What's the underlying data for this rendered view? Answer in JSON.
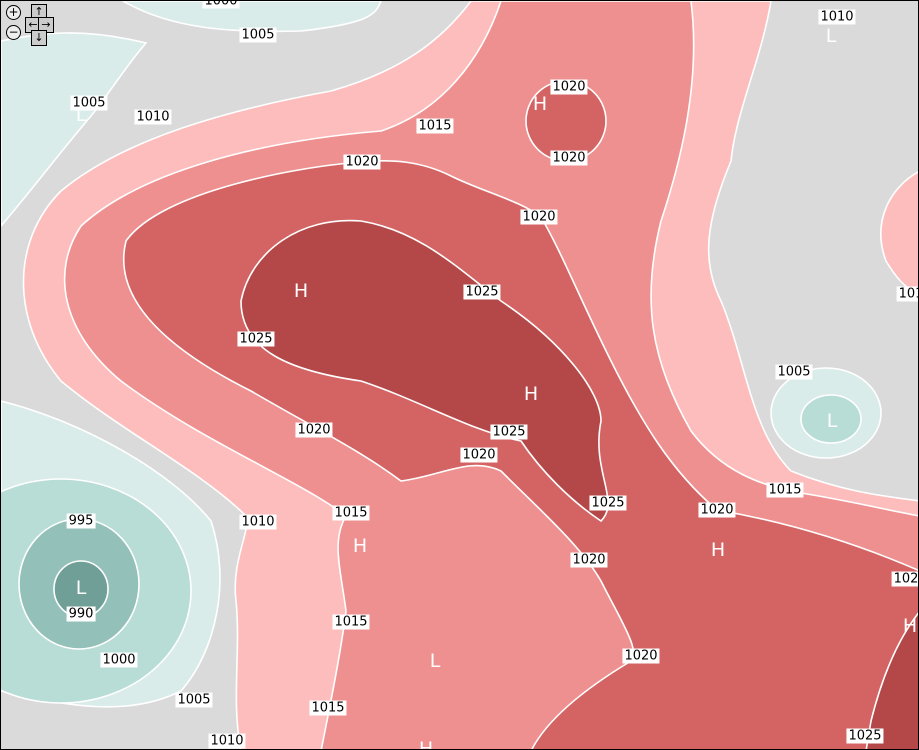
{
  "colors": {
    "below_990": "#6f9f97",
    "990_995": "#93c0b8",
    "995_1000": "#b8dcd6",
    "1000_1005": "#d9ecea",
    "1005_1010": "#dadada",
    "1010_1015": "#fdbdbd",
    "1015_1020": "#ef9090",
    "1020_1025": "#d46464",
    "above_1025": "#b44848",
    "isobar": "#ffffff"
  },
  "controls": {
    "zoom_in": "+",
    "zoom_out": "−",
    "pan_up": "↑",
    "pan_left": "←",
    "pan_right": "→",
    "pan_down": "↓"
  },
  "isobar_labels": [
    "1000",
    "1005",
    "1005",
    "1010",
    "1015",
    "1020",
    "1020",
    "1020",
    "1020",
    "1010",
    "1025",
    "1025",
    "1020",
    "1025",
    "1020",
    "1005",
    "1015",
    "1025",
    "1020",
    "1010",
    "1015",
    "1020",
    "102",
    "1015",
    "1020",
    "995",
    "990",
    "1000",
    "1005",
    "1015",
    "1010",
    "1025",
    "101"
  ],
  "pressure_centers": [
    "H",
    "H",
    "H",
    "H",
    "H",
    "H",
    "L",
    "L",
    "L",
    "L",
    "L",
    "H"
  ]
}
